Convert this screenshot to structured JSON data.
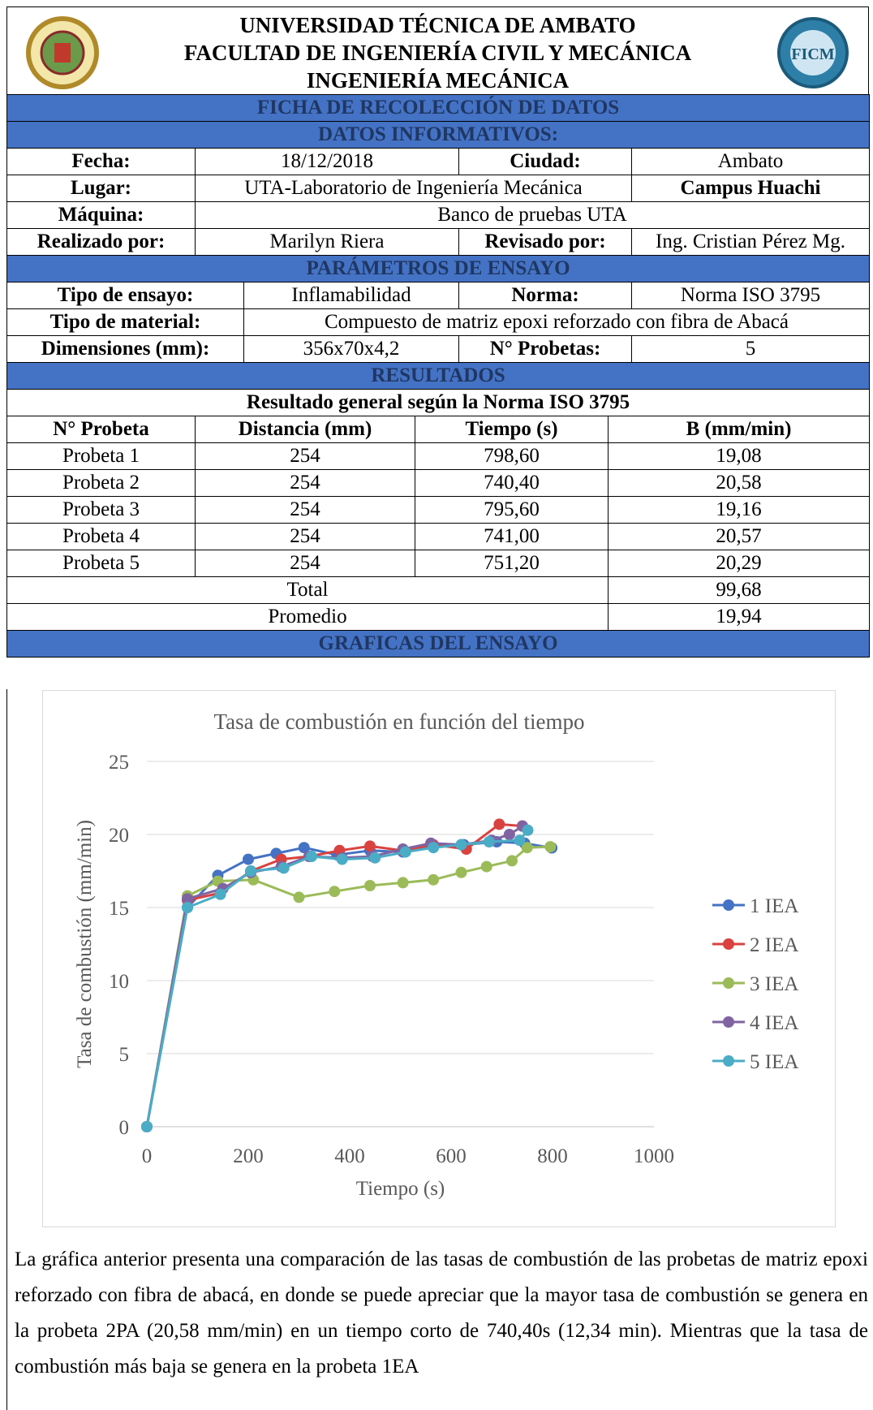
{
  "header": {
    "lines": [
      "UNIVERSIDAD TÉCNICA DE AMBATO",
      "FACULTAD DE INGENIERÍA CIVIL Y MECÁNICA",
      "INGENIERÍA MECÁNICA"
    ],
    "form_title": "FICHA DE RECOLECCIÓN DE DATOS"
  },
  "info": {
    "title": "DATOS INFORMATIVOS:",
    "fecha_label": "Fecha:",
    "fecha": "18/12/2018",
    "ciudad_label": "Ciudad:",
    "ciudad": "Ambato",
    "lugar_label": "Lugar:",
    "lugar": "UTA-Laboratorio de Ingeniería Mecánica",
    "campus": "Campus Huachi",
    "maquina_label": "Máquina:",
    "maquina": "Banco de pruebas UTA",
    "realizado_label": "Realizado por:",
    "realizado": "Marilyn Riera",
    "revisado_label": "Revisado por:",
    "revisado": "Ing. Cristian Pérez Mg."
  },
  "params": {
    "title": "PARÁMETROS DE ENSAYO",
    "tipo_ensayo_label": "Tipo de ensayo:",
    "tipo_ensayo": "Inflamabilidad",
    "norma_label": "Norma:",
    "norma": "Norma ISO 3795",
    "material_label": "Tipo de material:",
    "material": "Compuesto de matriz epoxi reforzado con fibra de Abacá",
    "dim_label": "Dimensiones (mm):",
    "dim": "356x70x4,2",
    "probetas_label": "N° Probetas:",
    "probetas": "5"
  },
  "results": {
    "title": "RESULTADOS",
    "subtitle": "Resultado general según la Norma ISO 3795",
    "columns": [
      "N° Probeta",
      "Distancia (mm)",
      "Tiempo (s)",
      "B (mm/min)"
    ],
    "rows": [
      [
        "Probeta 1",
        "254",
        "798,60",
        "19,08"
      ],
      [
        "Probeta 2",
        "254",
        "740,40",
        "20,58"
      ],
      [
        "Probeta 3",
        "254",
        "795,60",
        "19,16"
      ],
      [
        "Probeta 4",
        "254",
        "741,00",
        "20,57"
      ],
      [
        "Probeta 5",
        "254",
        "751,20",
        "20,29"
      ]
    ],
    "total_label": "Total",
    "total": "99,68",
    "average_label": "Promedio",
    "average": "19,94"
  },
  "charts_title": "GRAFICAS DEL ENSAYO",
  "chart_data": {
    "type": "line",
    "title": "Tasa de combustión en función del tiempo",
    "x_label": "Tiempo (s)",
    "y_label": "Tasa de combustión (mm/min)",
    "xlim": [
      0,
      1000
    ],
    "xticks": [
      0,
      200,
      400,
      600,
      800,
      1000
    ],
    "ylim": [
      0,
      25
    ],
    "yticks": [
      0,
      5,
      10,
      15,
      20,
      25
    ],
    "grid": true,
    "legend": "right",
    "series": [
      {
        "name": "1 IEA",
        "color": "#4472c4",
        "x": [
          0,
          80,
          140,
          200,
          255,
          310,
          375,
          440,
          505,
          565,
          625,
          690,
          745,
          798.6
        ],
        "values": [
          0,
          15.0,
          17.2,
          18.3,
          18.7,
          19.1,
          18.6,
          18.9,
          18.8,
          19.2,
          19.3,
          19.5,
          19.4,
          19.08
        ]
      },
      {
        "name": "2 IEA",
        "color": "#d9423f",
        "x": [
          0,
          80,
          145,
          205,
          265,
          320,
          380,
          440,
          505,
          565,
          630,
          695,
          740.4
        ],
        "values": [
          0,
          15.5,
          16.0,
          17.5,
          18.3,
          18.5,
          18.9,
          19.2,
          18.9,
          19.3,
          19.0,
          20.7,
          20.58
        ]
      },
      {
        "name": "3 IEA",
        "color": "#9bbb59",
        "x": [
          0,
          80,
          140,
          210,
          300,
          370,
          440,
          505,
          565,
          620,
          670,
          720,
          750,
          795.6
        ],
        "values": [
          0,
          15.8,
          16.8,
          16.9,
          15.7,
          16.1,
          16.5,
          16.7,
          16.9,
          17.4,
          17.8,
          18.2,
          19.1,
          19.16
        ]
      },
      {
        "name": "4 IEA",
        "color": "#8064a2",
        "x": [
          0,
          80,
          150,
          205,
          265,
          320,
          385,
          445,
          505,
          560,
          620,
          680,
          715,
          741
        ],
        "values": [
          0,
          15.6,
          16.3,
          17.4,
          17.8,
          18.5,
          18.4,
          18.5,
          19.0,
          19.4,
          19.3,
          19.6,
          20.0,
          20.57
        ]
      },
      {
        "name": "5 IEA",
        "color": "#4bacc6",
        "x": [
          0,
          80,
          145,
          205,
          270,
          325,
          385,
          450,
          510,
          565,
          620,
          675,
          735,
          751.2
        ],
        "values": [
          0,
          15.0,
          15.9,
          17.5,
          17.7,
          18.5,
          18.3,
          18.4,
          18.8,
          19.1,
          19.3,
          19.5,
          19.6,
          20.29
        ]
      }
    ]
  },
  "paragraph": "La gráfica anterior presenta una comparación de las tasas de combustión de las probetas de matriz epoxi reforzado con fibra de abacá, en donde se puede apreciar que la mayor tasa de combustión se genera en la probeta 2PA (20,58 mm/min) en un tiempo corto de 740,40s (12,34 min). Mientras que la tasa de combustión más baja se genera en la probeta 1EA"
}
